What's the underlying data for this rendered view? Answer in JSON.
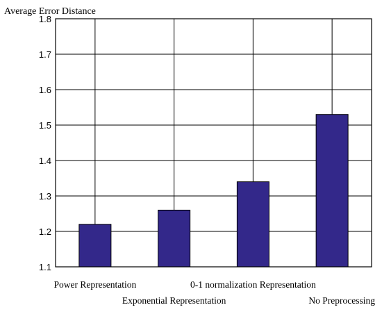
{
  "chart_data": {
    "type": "bar",
    "title": "",
    "ylabel": "Average Error Distance",
    "xlabel": "",
    "categories": [
      "Power Representation",
      "Exponential Representation",
      "0-1 normalization Representation",
      "No Preprocessing"
    ],
    "values": [
      1.22,
      1.26,
      1.34,
      1.53
    ],
    "ylim": [
      1.1,
      1.8
    ],
    "yticks": [
      "1.1",
      "1.2",
      "1.3",
      "1.4",
      "1.5",
      "1.6",
      "1.7",
      "1.8"
    ],
    "grid": true,
    "legend": "none",
    "bar_color": "#33288a",
    "grid_color": "#000000"
  }
}
